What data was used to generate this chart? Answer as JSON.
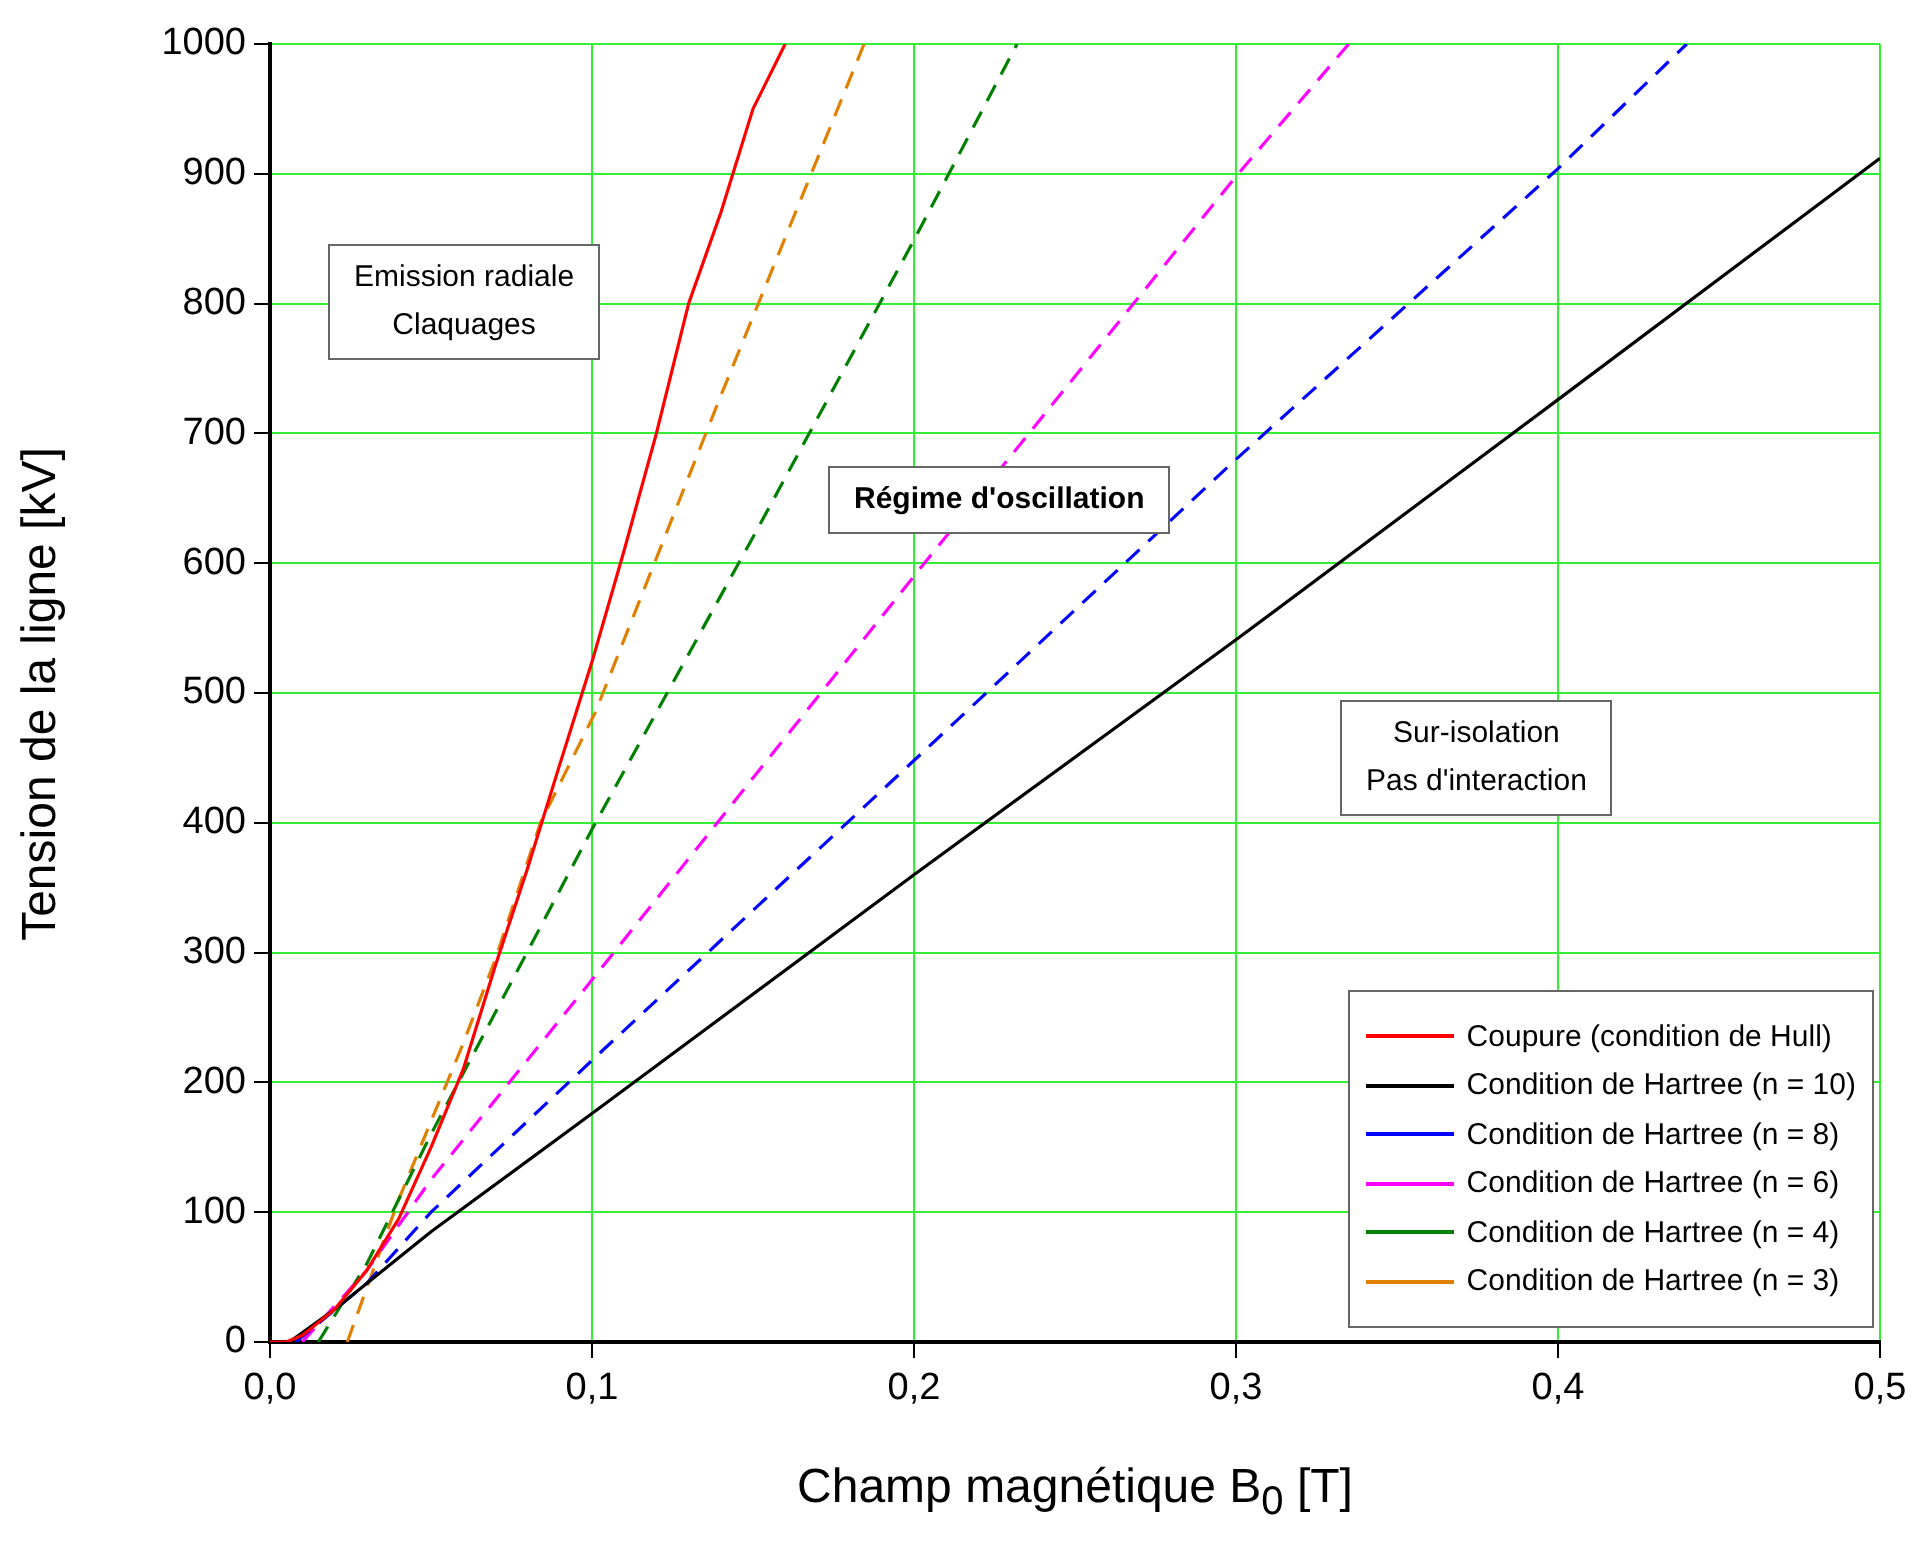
{
  "chart_data": {
    "type": "line",
    "xlabel": "Champ magnétique B$_{0}$ [T]",
    "ylabel": "Tension de la ligne [kV]",
    "xlim": [
      0,
      0.5
    ],
    "ylim": [
      0,
      1000
    ],
    "xticks": [
      {
        "value": 0,
        "label": "0,0"
      },
      {
        "value": 0.1,
        "label": "0,1"
      },
      {
        "value": 0.2,
        "label": "0,2"
      },
      {
        "value": 0.3,
        "label": "0,3"
      },
      {
        "value": 0.4,
        "label": "0,4"
      },
      {
        "value": 0.5,
        "label": "0,5"
      }
    ],
    "yticks": [
      0,
      100,
      200,
      300,
      400,
      500,
      600,
      700,
      800,
      900,
      1000
    ],
    "grid": true,
    "legend": "bottom right",
    "marker": "none",
    "annotations": [
      "Emission radiale\nClaquages",
      "Régime d'oscillation",
      "Sur-isolation\nPas d'interaction"
    ],
    "series": [
      {
        "name": "Coupure (condition de Hull)",
        "color": "#ff0000",
        "line_style": "solid",
        "x": [
          0,
          0.005,
          0.01,
          0.02,
          0.03,
          0.04,
          0.05,
          0.06,
          0.07,
          0.08,
          0.09,
          0.1,
          0.11,
          0.12,
          0.13,
          0.14,
          0.15,
          0.16
        ],
        "values": [
          0,
          0,
          5,
          25,
          55,
          95,
          150,
          210,
          290,
          365,
          445,
          524,
          610,
          700,
          800,
          870,
          950,
          1000
        ]
      },
      {
        "name": "Condition de Hartree (n = 10)",
        "color": "#000000",
        "line_style": "solid",
        "x": [
          0.006,
          0.02,
          0.05,
          0.1,
          0.2,
          0.3,
          0.4,
          0.5
        ],
        "values": [
          0,
          25,
          85,
          176,
          360,
          541,
          726,
          912
        ]
      },
      {
        "name": "Condition de Hartree (n = 8)",
        "color": "#0000ff",
        "line_style": "dashed",
        "x": [
          0.008,
          0.03,
          0.05,
          0.1,
          0.2,
          0.3,
          0.4,
          0.44
        ],
        "values": [
          0,
          45,
          100,
          217,
          448,
          680,
          904,
          1000
        ]
      },
      {
        "name": "Condition de Hartree (n = 6)",
        "color": "#ff00ff",
        "line_style": "dashed",
        "x": [
          0.01,
          0.03,
          0.05,
          0.1,
          0.2,
          0.3,
          0.335
        ],
        "values": [
          0,
          55,
          125,
          279,
          590,
          898,
          1000
        ]
      },
      {
        "name": "Condition de Hartree (n = 4)",
        "color": "#008000",
        "line_style": "dashed",
        "x": [
          0.015,
          0.03,
          0.05,
          0.1,
          0.15,
          0.2,
          0.232
        ],
        "values": [
          0,
          60,
          160,
          395,
          620,
          849,
          1000
        ]
      },
      {
        "name": "Condition de Hartree (n = 3)",
        "color": "#e08000",
        "line_style": "dashed",
        "x": [
          0.024,
          0.04,
          0.06,
          0.07,
          0.084,
          0.101,
          0.14,
          0.1845
        ],
        "values": [
          0,
          110,
          230,
          295,
          400,
          485,
          729,
          1000
        ]
      }
    ]
  }
}
